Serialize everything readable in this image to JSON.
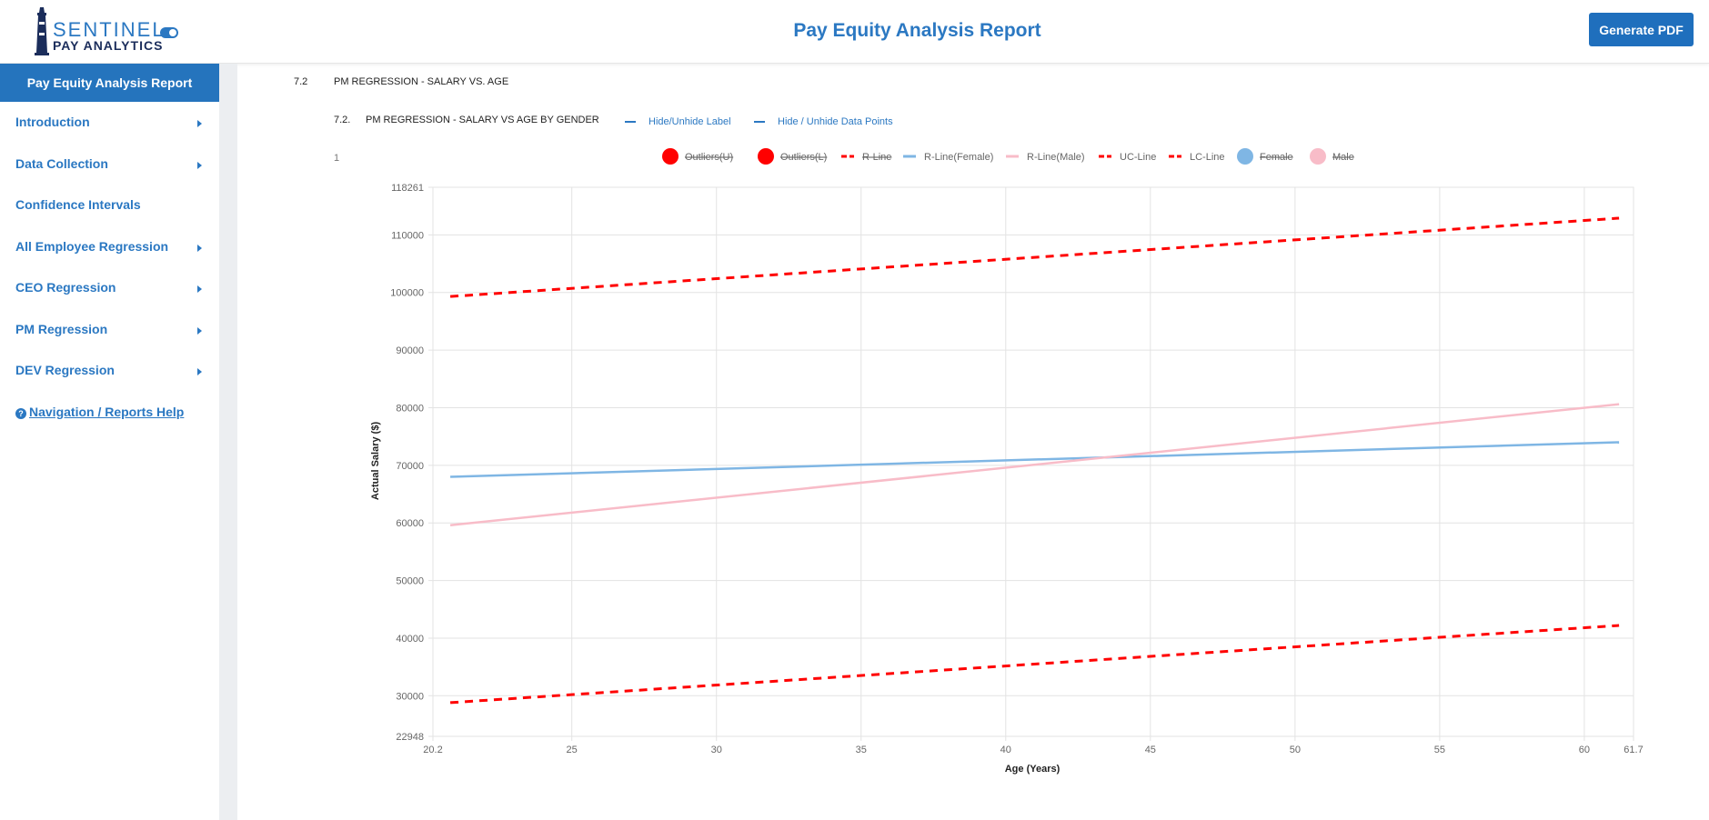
{
  "header": {
    "logo_line1": "SENTINEL",
    "logo_line2": "PAY ANALYTICS",
    "title": "Pay Equity Analysis Report",
    "pdf_button": "Generate PDF",
    "accent": "#2b78c2"
  },
  "sidebar": {
    "head": "Pay Equity Analysis Report",
    "items": [
      {
        "label": "Introduction",
        "caret": true
      },
      {
        "label": "Data Collection",
        "caret": true
      },
      {
        "label": "Confidence Intervals",
        "caret": false
      },
      {
        "label": "All Employee Regression",
        "caret": true
      },
      {
        "label": "CEO Regression",
        "caret": true
      },
      {
        "label": "PM Regression",
        "caret": true
      },
      {
        "label": "DEV Regression",
        "caret": true
      }
    ],
    "help": "Navigation / Reports Help"
  },
  "content": {
    "section_num": "7.2",
    "section_title": "PM REGRESSION - SALARY VS. AGE",
    "sub_num": "7.2.",
    "sub_title": "PM REGRESSION - SALARY VS AGE BY GENDER",
    "link1": "Hide/Unhide Label",
    "link2": "Hide / Unhide Data Points",
    "index": "1"
  },
  "chart_data": {
    "type": "line",
    "xlabel": "Age (Years)",
    "ylabel": "Actual Salary ($)",
    "xlim": [
      20.2,
      61.7
    ],
    "ylim": [
      22948,
      118261
    ],
    "x_ticks": [
      "20.2",
      "25",
      "30",
      "35",
      "40",
      "45",
      "50",
      "55",
      "60",
      "61.7"
    ],
    "y_ticks": [
      "118261",
      "110000",
      "100000",
      "90000",
      "80000",
      "70000",
      "60000",
      "50000",
      "40000",
      "30000",
      "22948"
    ],
    "grid": true,
    "legend_position": "top",
    "legend": [
      {
        "label": "Outliers(U)",
        "style": "dot",
        "color": "#ff0000",
        "hidden": true
      },
      {
        "label": "Outliers(L)",
        "style": "dot",
        "color": "#ff0000",
        "hidden": true
      },
      {
        "label": "R-Line",
        "style": "dash",
        "color": "#ff0000",
        "hidden": true
      },
      {
        "label": "R-Line(Female)",
        "style": "line",
        "color": "#7fb6e4",
        "hidden": false
      },
      {
        "label": "R-Line(Male)",
        "style": "line",
        "color": "#f8bcc8",
        "hidden": false
      },
      {
        "label": "UC-Line",
        "style": "dash",
        "color": "#ff0000",
        "hidden": false
      },
      {
        "label": "LC-Line",
        "style": "dash",
        "color": "#ff0000",
        "hidden": false
      },
      {
        "label": "Female",
        "style": "dot",
        "color": "#7fb6e4",
        "hidden": true
      },
      {
        "label": "Male",
        "style": "dot",
        "color": "#f8bcc8",
        "hidden": true
      }
    ],
    "series": [
      {
        "name": "UC-Line",
        "color": "#ff0000",
        "dashed": true,
        "x": [
          20.8,
          61.2
        ],
        "y": [
          99300,
          112900
        ]
      },
      {
        "name": "R-Line(Female)",
        "color": "#7fb6e4",
        "dashed": false,
        "x": [
          20.8,
          61.2
        ],
        "y": [
          68000,
          74000
        ]
      },
      {
        "name": "R-Line(Male)",
        "color": "#f8bcc8",
        "dashed": false,
        "x": [
          20.8,
          61.2
        ],
        "y": [
          59600,
          80600
        ]
      },
      {
        "name": "LC-Line",
        "color": "#ff0000",
        "dashed": true,
        "x": [
          20.8,
          61.2
        ],
        "y": [
          28800,
          42200
        ]
      }
    ]
  }
}
